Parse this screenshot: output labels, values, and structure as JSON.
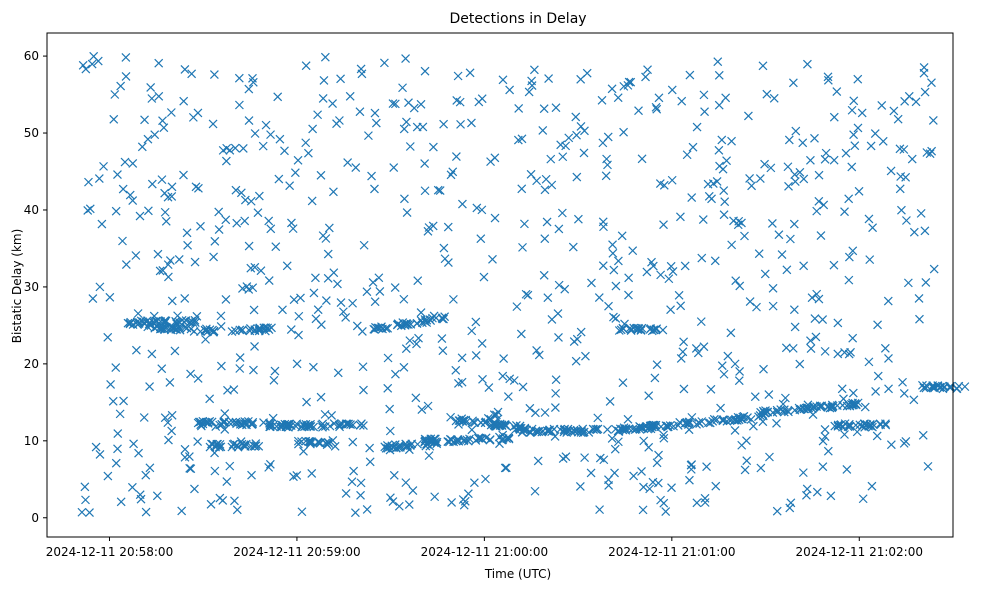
{
  "chart_data": {
    "type": "scatter",
    "title": "Detections in Delay",
    "xlabel": "Time (UTC)",
    "ylabel": "Bistatic Delay (km)",
    "x_tick_labels": [
      "2024-12-11 20:58:00",
      "2024-12-11 20:59:00",
      "2024-12-11 21:00:00",
      "2024-12-11 21:01:00",
      "2024-12-11 21:02:00"
    ],
    "x_tick_values_sec": [
      0,
      60,
      120,
      180,
      240
    ],
    "x_origin_label": "2024-12-11 20:58:00",
    "xlim_sec": [
      -20,
      270
    ],
    "y_ticks": [
      0,
      10,
      20,
      30,
      40,
      50,
      60
    ],
    "ylim": [
      -2.5,
      63
    ],
    "marker": "x",
    "color": "#1f77b4",
    "grid": false,
    "legend": "none",
    "note": "Approximately 1200 detections; scattered clutter uniformly spread over 0-60 km plus several dense near-linear tracks.",
    "tracks": [
      {
        "x_start": 5,
        "x_end": 28,
        "y_start": 25.3,
        "y_end": 25.5
      },
      {
        "x_start": 12,
        "x_end": 35,
        "y_start": 24.8,
        "y_end": 24.2
      },
      {
        "x_start": 28,
        "x_end": 50,
        "y_start": 12.3,
        "y_end": 12.3
      },
      {
        "x_start": 50,
        "x_end": 82,
        "y_start": 12.0,
        "y_end": 12.0
      },
      {
        "x_start": 60,
        "x_end": 72,
        "y_start": 9.8,
        "y_end": 9.8
      },
      {
        "x_start": 32,
        "x_end": 48,
        "y_start": 9.4,
        "y_end": 9.4
      },
      {
        "x_start": 84,
        "x_end": 108,
        "y_start": 24.5,
        "y_end": 26.0
      },
      {
        "x_start": 88,
        "x_end": 105,
        "y_start": 9.2,
        "y_end": 9.6
      },
      {
        "x_start": 100,
        "x_end": 130,
        "y_start": 10.0,
        "y_end": 10.3
      },
      {
        "x_start": 110,
        "x_end": 135,
        "y_start": 12.8,
        "y_end": 11.5
      },
      {
        "x_start": 130,
        "x_end": 160,
        "y_start": 11.3,
        "y_end": 11.3
      },
      {
        "x_start": 160,
        "x_end": 210,
        "y_start": 11.3,
        "y_end": 13.2
      },
      {
        "x_start": 205,
        "x_end": 240,
        "y_start": 13.5,
        "y_end": 14.8
      },
      {
        "x_start": 232,
        "x_end": 250,
        "y_start": 12.0,
        "y_end": 12.0
      },
      {
        "x_start": 163,
        "x_end": 178,
        "y_start": 24.5,
        "y_end": 24.5
      },
      {
        "x_start": 260,
        "x_end": 275,
        "y_start": 17.0,
        "y_end": 17.0
      },
      {
        "x_start": 40,
        "x_end": 52,
        "y_start": 24.5,
        "y_end": 24.5
      }
    ]
  }
}
